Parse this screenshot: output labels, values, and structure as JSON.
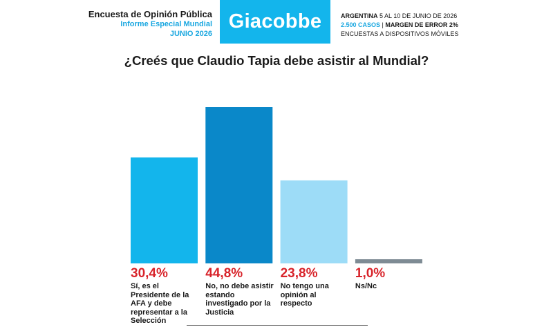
{
  "header": {
    "survey_title": "Encuesta de Opinión Pública",
    "report_name": "Informe Especial Mundial",
    "report_date": "JUNIO 2026",
    "brand": "Giacobbe",
    "country": "ARGENTINA",
    "field_dates": "5 AL 10 DE JUNIO DE 2026",
    "cases": "2.500 CASOS",
    "separator": "|",
    "margin_of_error": "MARGEN DE ERROR 2%",
    "method": "ENCUESTAS A DISPOSITIVOS MÓVILES"
  },
  "chart_data": {
    "type": "bar",
    "title": "¿Creés que Claudio Tapia debe asistir al Mundial?",
    "xlabel": "",
    "ylabel": "",
    "ylim": [
      0,
      44.8
    ],
    "grid": false,
    "categories": [
      "Sí, es el Presidente de la AFA y debe representar a la Selección",
      "No, no debe asistir estando investigado por la Justicia",
      "No tengo una opinión al respecto",
      "Ns/Nc"
    ],
    "values": [
      30.4,
      44.8,
      23.8,
      1.0
    ],
    "value_labels": [
      "30,4%",
      "44,8%",
      "23,8%",
      "1,0%"
    ],
    "colors": [
      "#13b5ec",
      "#0a88c9",
      "#9ddcf7",
      "#7e8b94"
    ]
  }
}
